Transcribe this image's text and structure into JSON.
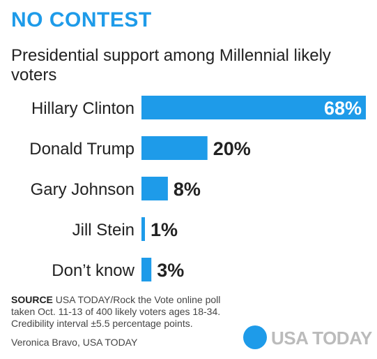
{
  "headline": "NO CONTEST",
  "chart_data": {
    "type": "bar",
    "orientation": "horizontal",
    "title": "Presidential support among Millennial likely voters",
    "categories": [
      "Hillary Clinton",
      "Donald Trump",
      "Gary Johnson",
      "Jill Stein",
      "Don’t know"
    ],
    "values": [
      68,
      20,
      8,
      1,
      3
    ],
    "value_labels": [
      "68%",
      "20%",
      "8%",
      "1%",
      "3%"
    ],
    "xlim": [
      0,
      68
    ],
    "grid": false,
    "legend": "none",
    "bar_color": "#1E9BE9"
  },
  "source": {
    "label": "SOURCE",
    "text": "USA TODAY/Rock the Vote online poll taken Oct. 11-13 of 400 likely voters ages 18-34. Credibility interval ±5.5 percentage points."
  },
  "credit": "Veronica Bravo, USA TODAY",
  "logo": {
    "text": "USA TODAY",
    "dot_color": "#1E9BE9"
  }
}
